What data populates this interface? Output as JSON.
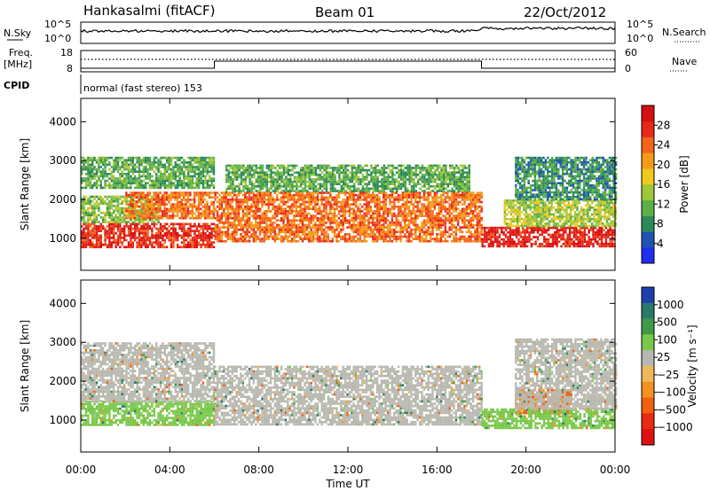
{
  "header": {
    "station": "Hankasalmi (fitACF)",
    "beam": "Beam 01",
    "date": "22/Oct/2012"
  },
  "strip": {
    "nsky_label": "N.Sky",
    "nsearch_label": "N.Search",
    "nsky_top": "10^5",
    "nsky_bottom": "10^0",
    "freq_label_1": "Freq.",
    "freq_label_2": "[MHz]",
    "freq_top": "18",
    "freq_bottom": "8",
    "nave_label": "Nave",
    "nave_top": "60",
    "nave_bottom": "0",
    "cpid_label": "CPID",
    "cpid_text": "normal (fast stereo) 153"
  },
  "panels": {
    "power": {
      "ylabel": "Slant Range [km]",
      "colorbar_label": "Power [dB]",
      "colorbar_ticks": [
        "4",
        "8",
        "12",
        "16",
        "20",
        "24",
        "28"
      ],
      "colorbar_colors": [
        "#1f2ef0",
        "#1f53b4",
        "#2b8a58",
        "#5caf47",
        "#a0c63a",
        "#f0c81e",
        "#f59a18",
        "#f4641a",
        "#e8281a",
        "#d80f10"
      ]
    },
    "velocity": {
      "ylabel": "Slant Range [km]",
      "colorbar_label": "Velocity [m s⁻¹]",
      "colorbar_ticks": [
        "1000",
        "500",
        "100",
        "25",
        "−25",
        "−100",
        "−500",
        "−1000"
      ],
      "colorbar_colors": [
        "#1f3fae",
        "#2a7a6a",
        "#3f9a4a",
        "#79c84a",
        "#b8b8b0",
        "#f0b85a",
        "#f29020",
        "#f06010",
        "#e82a10",
        "#e01010"
      ]
    }
  },
  "xaxis": {
    "label": "Time UT",
    "ticks": [
      "00:00",
      "04:00",
      "08:00",
      "12:00",
      "16:00",
      "20:00",
      "00:00"
    ]
  },
  "chart_data": [
    {
      "type": "heatmap",
      "title": "Power",
      "xlabel": "Time UT",
      "ylabel": "Slant Range [km]",
      "x_range_hours": [
        0,
        24
      ],
      "ylim": [
        180,
        4600
      ],
      "y_ticks": [
        1000,
        2000,
        3000,
        4000
      ],
      "color_scale_label": "Power [dB]",
      "color_scale_range": [
        0,
        30
      ],
      "color_ticks": [
        4,
        8,
        12,
        16,
        20,
        24,
        28
      ],
      "regions": [
        {
          "t_start": 0.0,
          "t_end": 6.0,
          "r_low": 800,
          "r_high": 1400,
          "power": 26
        },
        {
          "t_start": 0.0,
          "t_end": 3.5,
          "r_low": 1400,
          "r_high": 2100,
          "power": 12
        },
        {
          "t_start": 2.0,
          "t_end": 6.0,
          "r_low": 1500,
          "r_high": 2200,
          "power": 22
        },
        {
          "t_start": 0.0,
          "t_end": 6.0,
          "r_low": 2300,
          "r_high": 3100,
          "power": 10
        },
        {
          "t_start": 6.0,
          "t_end": 18.0,
          "r_low": 900,
          "r_high": 2200,
          "power": 22
        },
        {
          "t_start": 6.5,
          "t_end": 17.5,
          "r_low": 2200,
          "r_high": 2900,
          "power": 10
        },
        {
          "t_start": 18.0,
          "t_end": 24.0,
          "r_low": 800,
          "r_high": 1300,
          "power": 27
        },
        {
          "t_start": 19.0,
          "t_end": 24.0,
          "r_low": 1300,
          "r_high": 2000,
          "power": 14
        },
        {
          "t_start": 19.5,
          "t_end": 24.0,
          "r_low": 2000,
          "r_high": 3100,
          "power": 8
        }
      ]
    },
    {
      "type": "heatmap",
      "title": "Velocity",
      "xlabel": "Time UT",
      "ylabel": "Slant Range [km]",
      "x_range_hours": [
        0,
        24
      ],
      "ylim": [
        180,
        4600
      ],
      "y_ticks": [
        1000,
        2000,
        3000,
        4000
      ],
      "color_scale_label": "Velocity [m s-1]",
      "color_ticks": [
        1000,
        500,
        100,
        25,
        -25,
        -100,
        -500,
        -1000
      ],
      "regions": [
        {
          "t_start": 0.0,
          "t_end": 6.0,
          "r_low": 900,
          "r_high": 1500,
          "velocity": 60
        },
        {
          "t_start": 0.0,
          "t_end": 6.0,
          "r_low": 1500,
          "r_high": 3000,
          "velocity": 0
        },
        {
          "t_start": 6.0,
          "t_end": 18.0,
          "r_low": 900,
          "r_high": 2400,
          "velocity": 0
        },
        {
          "t_start": 18.0,
          "t_end": 20.0,
          "r_low": 800,
          "r_high": 1300,
          "velocity": 60
        },
        {
          "t_start": 19.5,
          "t_end": 22.0,
          "r_low": 1200,
          "r_high": 1800,
          "velocity": -250
        },
        {
          "t_start": 20.0,
          "t_end": 24.0,
          "r_low": 800,
          "r_high": 1300,
          "velocity": 60
        },
        {
          "t_start": 19.5,
          "t_end": 24.0,
          "r_low": 1300,
          "r_high": 3100,
          "velocity": 0
        }
      ]
    }
  ]
}
